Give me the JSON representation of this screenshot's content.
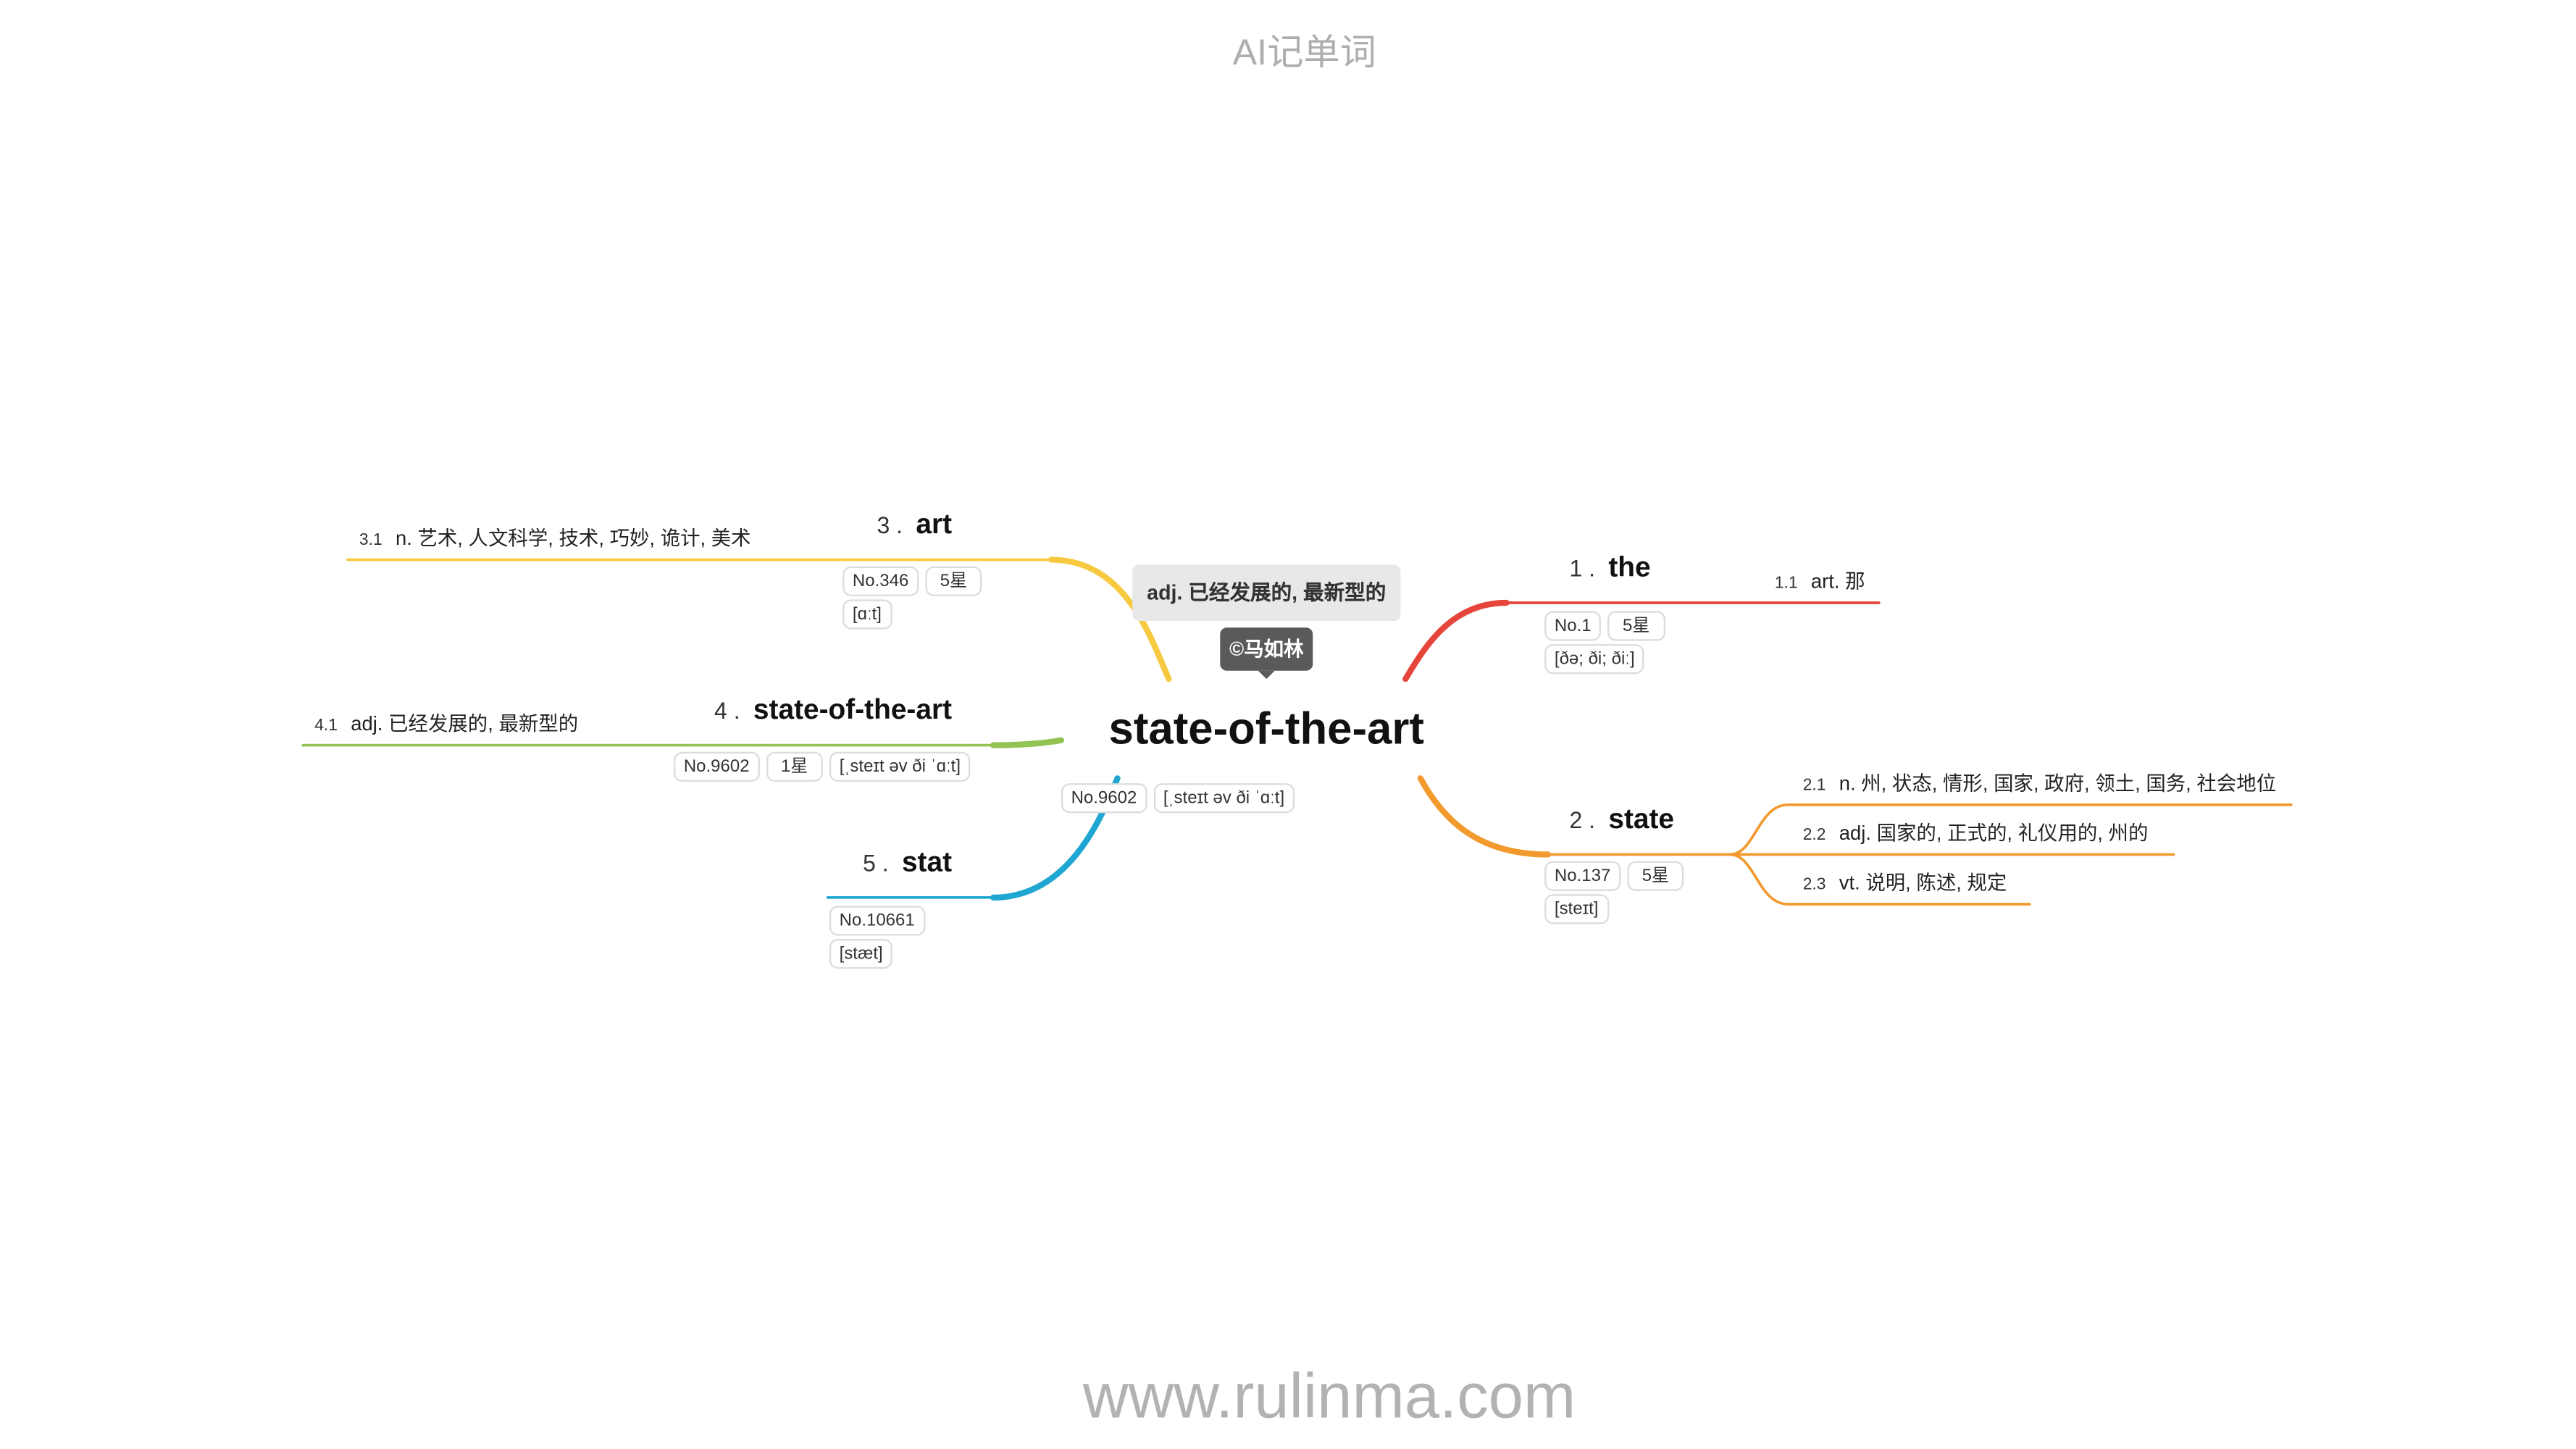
{
  "header": {
    "title": "AI记单词"
  },
  "footer": {
    "url": "www.rulinma.com"
  },
  "central": {
    "word": "state-of-the-art",
    "note": "adj. 已经发展的, 最新型的",
    "author": "©马如林",
    "rank": "No.9602",
    "phonetic": "[ˌsteɪt əv ði ˈɑːt]"
  },
  "branches": [
    {
      "index": "1 .",
      "word": "the",
      "color": "#e6453b",
      "rank": "No.1",
      "stars": "5星",
      "phonetic": "[ðə; ði; ðiː]",
      "senses": [
        {
          "num": "1.1",
          "text": "art. 那"
        }
      ]
    },
    {
      "index": "2 .",
      "word": "state",
      "color": "#f29a2e",
      "rank": "No.137",
      "stars": "5星",
      "phonetic": "[steɪt]",
      "senses": [
        {
          "num": "2.1",
          "text": "n. 州, 状态, 情形, 国家, 政府, 领土, 国务, 社会地位"
        },
        {
          "num": "2.2",
          "text": "adj. 国家的, 正式的, 礼仪用的, 州的"
        },
        {
          "num": "2.3",
          "text": "vt. 说明, 陈述, 规定"
        }
      ]
    },
    {
      "index": "3 .",
      "word": "art",
      "color": "#f6c940",
      "rank": "No.346",
      "stars": "5星",
      "phonetic": "[ɑːt]",
      "senses": [
        {
          "num": "3.1",
          "text": "n. 艺术, 人文科学, 技术, 巧妙, 诡计, 美术"
        }
      ]
    },
    {
      "index": "4 .",
      "word": "state-of-the-art",
      "color": "#92c353",
      "rank": "No.9602",
      "stars": "1星",
      "phonetic": "[ˌsteɪt əv ði ˈɑːt]",
      "senses": [
        {
          "num": "4.1",
          "text": "adj. 已经发展的, 最新型的"
        }
      ]
    },
    {
      "index": "5 .",
      "word": "stat",
      "color": "#1fa6d2",
      "rank": "No.10661",
      "phonetic": "[stæt]",
      "senses": []
    }
  ]
}
